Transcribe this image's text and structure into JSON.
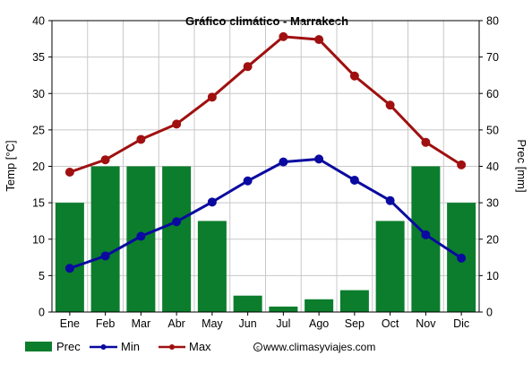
{
  "chart_data": {
    "type": "bar+line",
    "title": "Gráfico climático - Marrakech",
    "categories": [
      "Ene",
      "Feb",
      "Mar",
      "Abr",
      "May",
      "Jun",
      "Jul",
      "Ago",
      "Sep",
      "Oct",
      "Nov",
      "Dic"
    ],
    "y_left": {
      "label": "Temp [°C]",
      "min": 0,
      "max": 40,
      "step": 5
    },
    "y_right": {
      "label": "Prec [mm]",
      "min": 0,
      "max": 80,
      "step": 10
    },
    "grid": true,
    "legend_position": "bottom",
    "series": [
      {
        "name": "Prec",
        "type": "bar",
        "axis": "right",
        "color": "#0b7d2c",
        "values": [
          30,
          40,
          40,
          40,
          25,
          4.5,
          1.5,
          3.5,
          6,
          25,
          40,
          30
        ]
      },
      {
        "name": "Min",
        "type": "line",
        "axis": "left",
        "color": "#0a0aa0",
        "values": [
          6,
          7.7,
          10.4,
          12.4,
          15.1,
          18,
          20.6,
          21,
          18.1,
          15.3,
          10.6,
          7.4
        ]
      },
      {
        "name": "Max",
        "type": "line",
        "axis": "left",
        "color": "#a01010",
        "values": [
          19.2,
          20.9,
          23.7,
          25.8,
          29.5,
          33.7,
          37.8,
          37.4,
          32.4,
          28.4,
          23.3,
          20.2
        ]
      }
    ],
    "watermark": "www.climasyviajes.com",
    "watermark_icon": "copyright-icon"
  }
}
